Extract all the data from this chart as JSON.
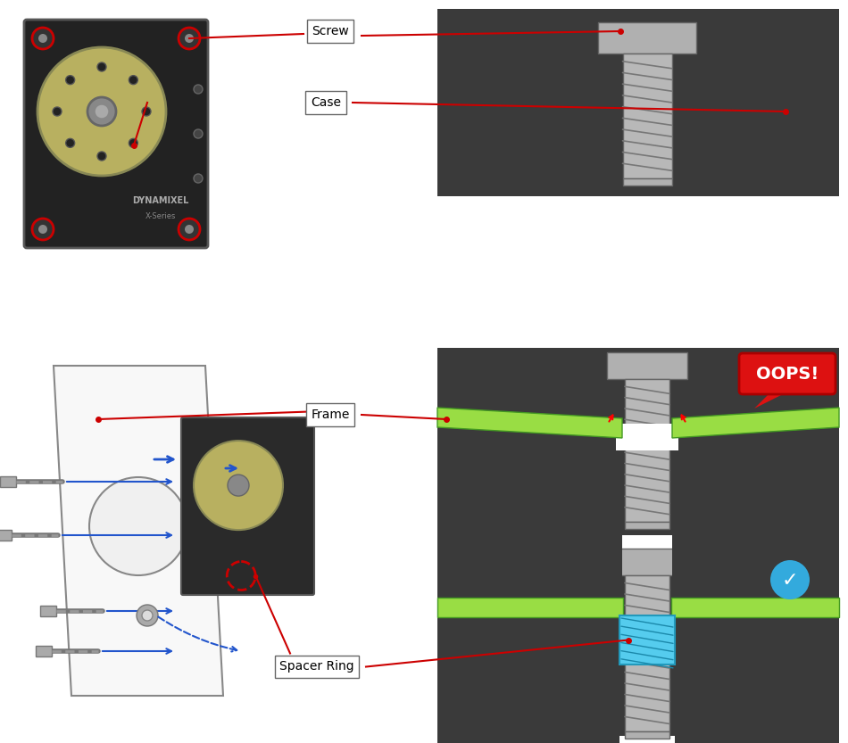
{
  "bg_color": "#ffffff",
  "dark_bg": "#3a3a3a",
  "screw_head_color": "#b0b0b0",
  "screw_body_color": "#a0a0a0",
  "screw_thread_color": "#888888",
  "frame_green": "#99dd44",
  "spacer_blue": "#55ccee",
  "label_box_color": "#ffffff",
  "label_border": "#555555",
  "red_arrow": "#cc0000",
  "oops_red": "#dd1111",
  "check_blue": "#33aadd",
  "labels": {
    "screw": "Screw",
    "case": "Case",
    "frame": "Frame",
    "spacer": "Spacer Ring",
    "oops": "OOPS!",
    "check": "✓"
  }
}
